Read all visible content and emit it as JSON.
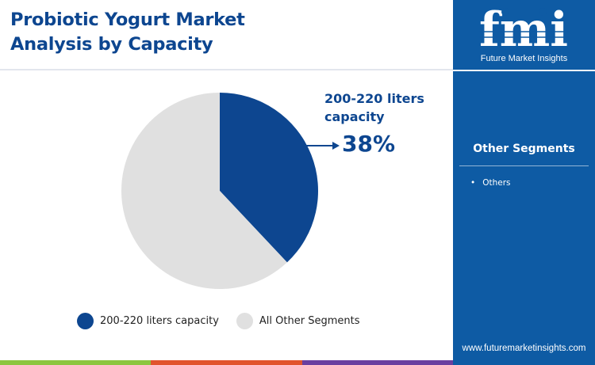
{
  "header": {
    "title_line1": "Probiotic Yogurt Market",
    "title_line2": "Analysis by Capacity"
  },
  "brand": {
    "logo_text": "fmi",
    "name": "Future Market Insights",
    "website": "www.futuremarketinsights.com"
  },
  "side_panel": {
    "heading": "Other Segments",
    "items": [
      "Others"
    ]
  },
  "colors": {
    "primary_navy": "#0d4690",
    "panel_blue": "#0e5ba4",
    "slice_other": "#e0e0e0",
    "footer_segments": [
      "#8cc63f",
      "#e1542d",
      "#6a3fa0"
    ]
  },
  "chart_data": {
    "type": "pie",
    "slices": [
      {
        "label": "200-220 liters capacity",
        "value": 38,
        "color": "#0d4690"
      },
      {
        "label": "All Other Segments",
        "value": 62,
        "color": "#e0e0e0"
      }
    ],
    "start": "12 o'clock, clockwise",
    "callout": {
      "label_line1": "200-220 liters",
      "label_line2": "capacity",
      "value": "38%"
    },
    "legend": {
      "position": "bottom",
      "entries": [
        "200-220 liters capacity",
        "All Other Segments"
      ]
    }
  }
}
